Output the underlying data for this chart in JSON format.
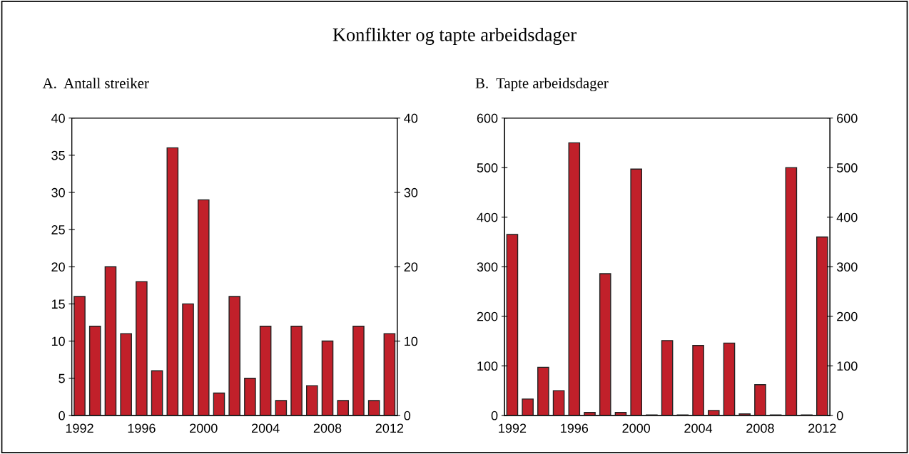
{
  "chart_data": [
    {
      "type": "bar",
      "title": "A.  Antall streiker",
      "annotations": [
        "Konflikter og tapte arbeidsdager"
      ],
      "categories": [
        "1992",
        null,
        null,
        null,
        "1996",
        null,
        null,
        null,
        "2000",
        null,
        null,
        null,
        "2004",
        null,
        null,
        null,
        "2008",
        null,
        null,
        null,
        "2012"
      ],
      "series": [
        {
          "color": "#c1202a",
          "values": [
            16,
            12,
            20,
            11,
            18,
            6,
            36,
            15,
            29,
            3,
            16,
            5,
            12,
            2,
            12,
            4,
            10,
            2,
            12,
            2,
            11
          ]
        }
      ],
      "ylim": [
        0,
        40
      ],
      "yticks": [
        0,
        5,
        10,
        15,
        20,
        25,
        30,
        35,
        40
      ],
      "y2lim": [
        0,
        40
      ],
      "y2ticks": [
        0,
        10,
        20,
        30,
        40
      ],
      "grid": false
    },
    {
      "type": "bar",
      "title": "B.  Tapte arbeidsdager",
      "categories": [
        "1992",
        null,
        null,
        null,
        "1996",
        null,
        null,
        null,
        "2000",
        null,
        null,
        null,
        "2004",
        null,
        null,
        null,
        "2008",
        null,
        null,
        null,
        "2012"
      ],
      "series": [
        {
          "color": "#c1202a",
          "values": [
            365,
            33,
            97,
            50,
            550,
            6,
            286,
            6,
            497,
            1,
            151,
            1,
            141,
            10,
            146,
            3,
            62,
            1,
            500,
            1,
            360
          ]
        }
      ],
      "ylim": [
        0,
        600
      ],
      "yticks": [
        0,
        100,
        200,
        300,
        400,
        500,
        600
      ],
      "y2lim": [
        0,
        600
      ],
      "y2ticks": [
        0,
        100,
        200,
        300,
        400,
        500,
        600
      ],
      "grid": false
    }
  ]
}
